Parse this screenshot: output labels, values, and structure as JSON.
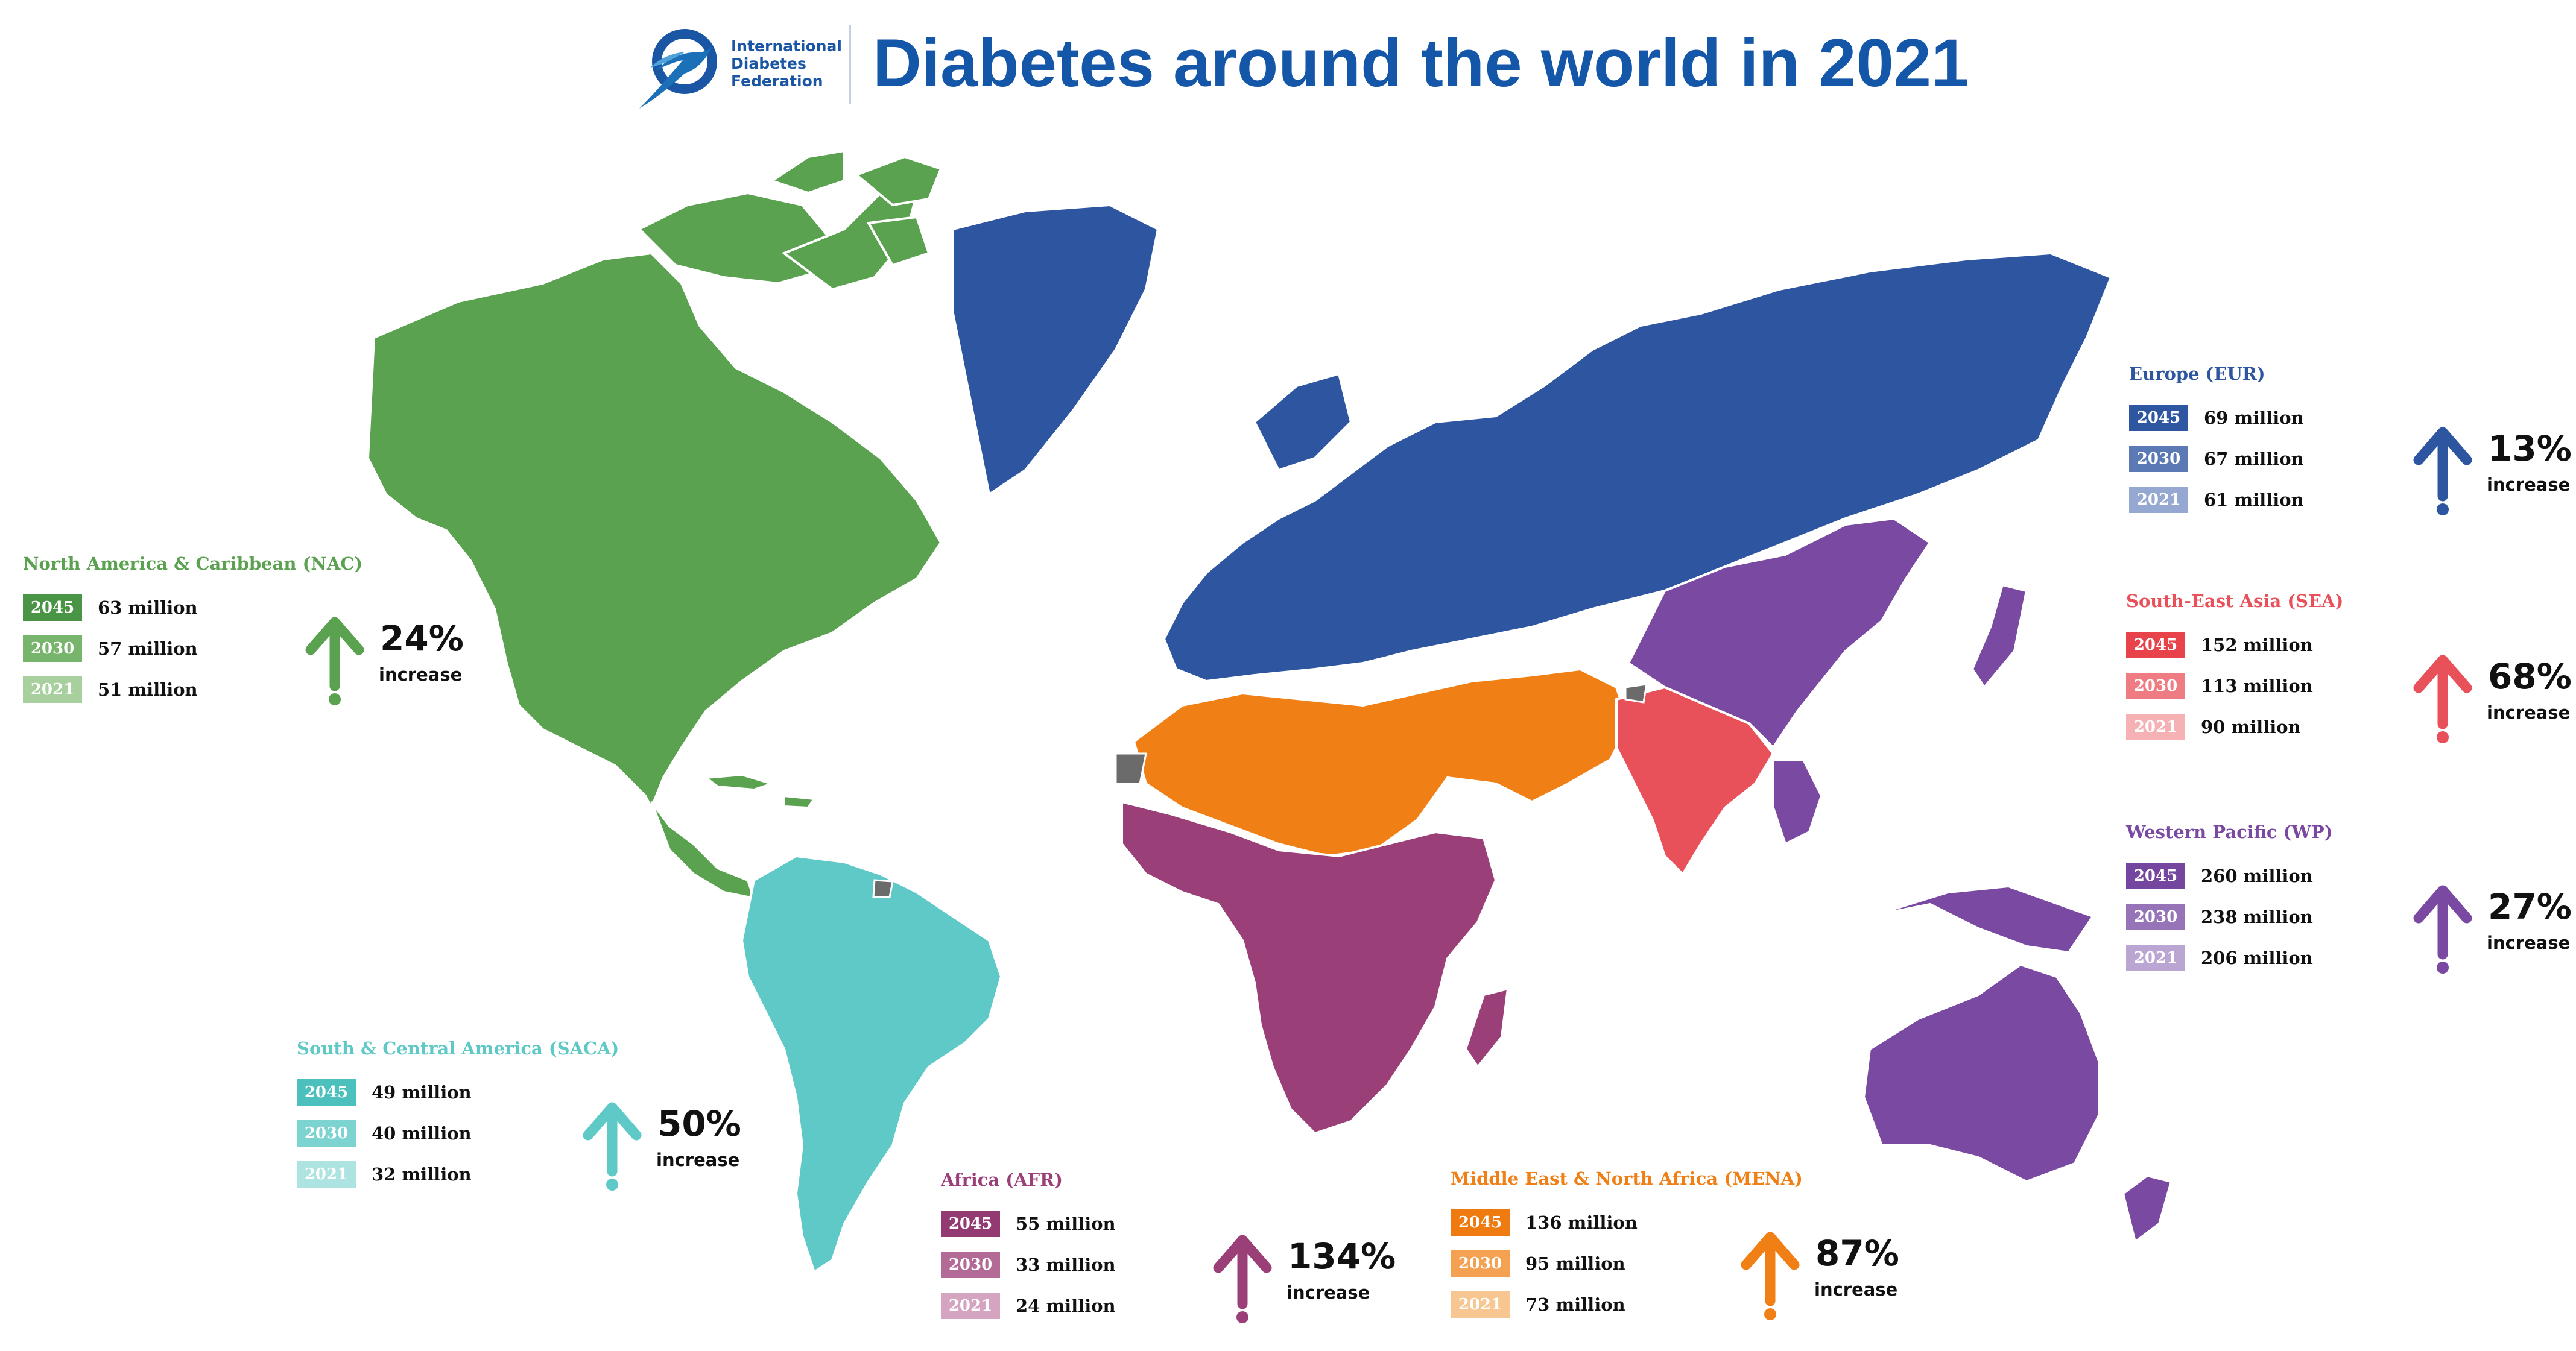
{
  "header": {
    "title": "Diabetes around the world in 2021",
    "logo_lines": [
      "International",
      "Diabetes",
      "Federation"
    ]
  },
  "colors": {
    "nac": "#5aa150",
    "saca": "#5ec9c6",
    "eur": "#2e55a0",
    "sea": "#e8515a",
    "wp": "#7a4aa3",
    "afr": "#9b3f78",
    "mena": "#f07f16",
    "unassigned": "#6b6b6b"
  },
  "regions": [
    {
      "id": "nac",
      "label": "North America & Caribbean (NAC)",
      "color": "#5aa150",
      "rows": [
        {
          "year": "2045",
          "value": "63 million",
          "color": "#4a9545"
        },
        {
          "year": "2030",
          "value": "57 million",
          "color": "#77b46c"
        },
        {
          "year": "2021",
          "value": "51 million",
          "color": "#a8cf9e"
        }
      ],
      "increase_pct": "24%",
      "increase_word": "increase"
    },
    {
      "id": "saca",
      "label": "South & Central America (SACA)",
      "color": "#5ec9c6",
      "rows": [
        {
          "year": "2045",
          "value": "49 million",
          "color": "#4cc0bd"
        },
        {
          "year": "2030",
          "value": "40 million",
          "color": "#7dd3d0"
        },
        {
          "year": "2021",
          "value": "32 million",
          "color": "#ade3e1"
        }
      ],
      "increase_pct": "50%",
      "increase_word": "increase"
    },
    {
      "id": "afr",
      "label": "Africa (AFR)",
      "color": "#9b3f78",
      "rows": [
        {
          "year": "2045",
          "value": "55 million",
          "color": "#933a73"
        },
        {
          "year": "2030",
          "value": "33 million",
          "color": "#b36a97"
        },
        {
          "year": "2021",
          "value": "24 million",
          "color": "#d4a4c1"
        }
      ],
      "increase_pct": "134%",
      "increase_word": "increase"
    },
    {
      "id": "mena",
      "label": "Middle East & North Africa (MENA)",
      "color": "#f07f16",
      "rows": [
        {
          "year": "2045",
          "value": "136 million",
          "color": "#ee7a10"
        },
        {
          "year": "2030",
          "value": "95 million",
          "color": "#f4a252"
        },
        {
          "year": "2021",
          "value": "73 million",
          "color": "#f8c690"
        }
      ],
      "increase_pct": "87%",
      "increase_word": "increase"
    },
    {
      "id": "eur",
      "label": "Europe (EUR)",
      "color": "#2e55a0",
      "rows": [
        {
          "year": "2045",
          "value": "69 million",
          "color": "#2f56a0"
        },
        {
          "year": "2030",
          "value": "67 million",
          "color": "#5a79b5"
        },
        {
          "year": "2021",
          "value": "61 million",
          "color": "#94a8d2"
        }
      ],
      "increase_pct": "13%",
      "increase_word": "increase"
    },
    {
      "id": "sea",
      "label": "South-East Asia (SEA)",
      "color": "#e8515a",
      "rows": [
        {
          "year": "2045",
          "value": "152 million",
          "color": "#e8424b"
        },
        {
          "year": "2030",
          "value": "113 million",
          "color": "#ee7c82"
        },
        {
          "year": "2021",
          "value": "90 million",
          "color": "#f5b1b4"
        }
      ],
      "increase_pct": "68%",
      "increase_word": "increase"
    },
    {
      "id": "wp",
      "label": "Western Pacific (WP)",
      "color": "#7a4aa3",
      "rows": [
        {
          "year": "2045",
          "value": "260 million",
          "color": "#74469f"
        },
        {
          "year": "2030",
          "value": "238 million",
          "color": "#9674b7"
        },
        {
          "year": "2021",
          "value": "206 million",
          "color": "#bba6d3"
        }
      ],
      "increase_pct": "27%",
      "increase_word": "increase"
    }
  ]
}
